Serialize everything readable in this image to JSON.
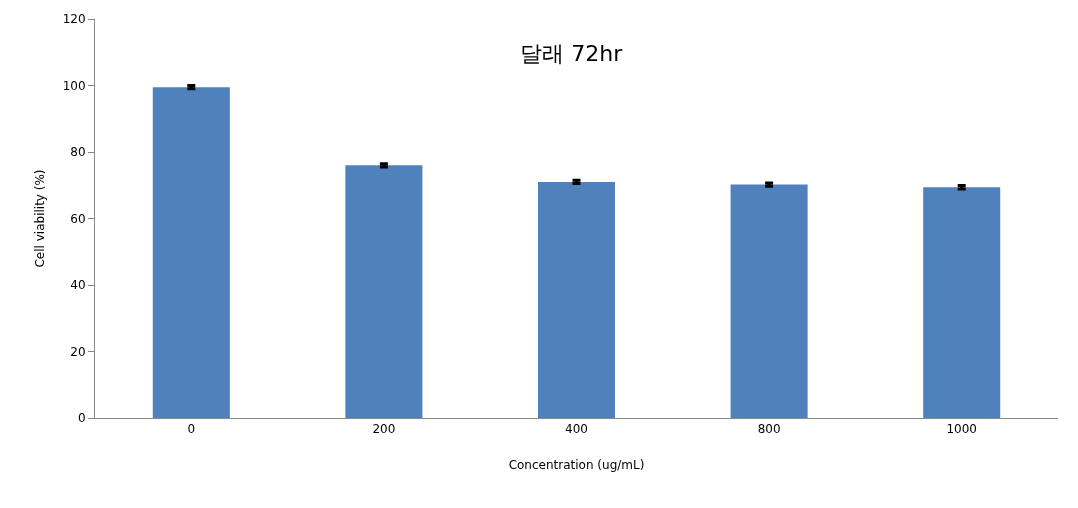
{
  "chart_data": {
    "type": "bar",
    "title": "달래 72hr",
    "xlabel": "Concentration (ug/mL)",
    "ylabel": "Cell viability (%)",
    "categories": [
      "0",
      "200",
      "400",
      "800",
      "1000"
    ],
    "values": [
      99.5,
      76,
      71,
      70.2,
      69.4
    ],
    "errors": [
      0.5,
      0.5,
      0.5,
      0.5,
      0.5
    ],
    "color": "#4f81bd",
    "ylim": [
      0,
      120
    ],
    "yticks": [
      0,
      20,
      40,
      60,
      80,
      100,
      120
    ]
  }
}
